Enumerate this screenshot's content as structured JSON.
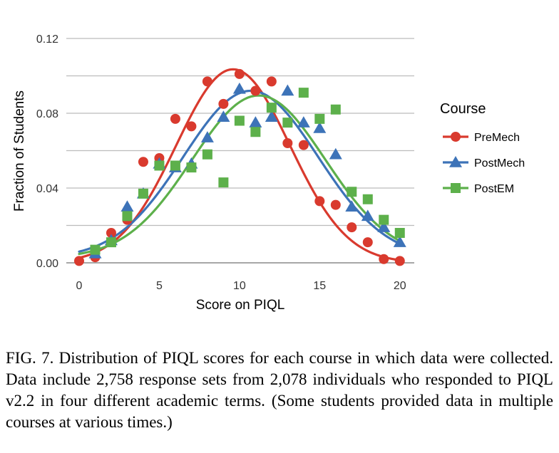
{
  "chart_data": {
    "type": "scatter",
    "xlabel": "Score on PIQL",
    "ylabel": "Fraction of Students",
    "xlim": [
      -0.8,
      20.9
    ],
    "ylim": [
      0,
      0.12
    ],
    "x_ticks": [
      0,
      5,
      10,
      15,
      20
    ],
    "x_tick_labels": [
      "0",
      "5",
      "10",
      "15",
      "20"
    ],
    "y_ticks": [
      0,
      0.02,
      0.04,
      0.06,
      0.08,
      0.1,
      0.12
    ],
    "y_tick_labels": [
      "0.00",
      "0.04",
      "0.08",
      "0.12"
    ],
    "y_tick_labels_at": [
      0,
      0.04,
      0.08,
      0.12
    ],
    "grid": true,
    "legend_title": "Course",
    "legend_position": "right",
    "series": [
      {
        "name": "PreMech",
        "color": "#d93a2e",
        "marker": "circle",
        "x": [
          0,
          1,
          2,
          3,
          4,
          5,
          6,
          7,
          8,
          9,
          10,
          11,
          12,
          13,
          14,
          15,
          16,
          17,
          18,
          19,
          20
        ],
        "y": [
          0.001,
          0.003,
          0.016,
          0.023,
          0.054,
          0.056,
          0.077,
          0.073,
          0.097,
          0.085,
          0.101,
          0.092,
          0.097,
          0.064,
          0.063,
          0.033,
          0.031,
          0.019,
          0.011,
          0.002,
          0.001
        ],
        "fit": {
          "amplitude": 0.1035,
          "mean": 9.6,
          "sigma": 3.55,
          "offset": 0.0
        }
      },
      {
        "name": "PostMech",
        "color": "#3d73b8",
        "marker": "triangle",
        "x": [
          1,
          2,
          3,
          4,
          5,
          6,
          7,
          8,
          9,
          10,
          11,
          12,
          13,
          14,
          15,
          16,
          17,
          18,
          19,
          20
        ],
        "y": [
          0.005,
          0.012,
          0.03,
          0.037,
          0.053,
          0.051,
          0.053,
          0.067,
          0.078,
          0.093,
          0.075,
          0.078,
          0.092,
          0.075,
          0.072,
          0.058,
          0.03,
          0.025,
          0.019,
          0.011
        ],
        "fit": {
          "amplitude": 0.0895,
          "mean": 10.7,
          "sigma": 4.2,
          "offset": 0.0025
        }
      },
      {
        "name": "PostEM",
        "color": "#5db04b",
        "marker": "square",
        "x": [
          1,
          2,
          3,
          4,
          5,
          6,
          7,
          8,
          9,
          10,
          11,
          12,
          13,
          14,
          15,
          16,
          17,
          18,
          19,
          20
        ],
        "y": [
          0.007,
          0.011,
          0.025,
          0.037,
          0.052,
          0.052,
          0.051,
          0.058,
          0.043,
          0.076,
          0.07,
          0.083,
          0.075,
          0.091,
          0.077,
          0.082,
          0.038,
          0.034,
          0.023,
          0.016
        ],
        "fit": {
          "amplitude": 0.087,
          "mean": 11.2,
          "sigma": 4.15,
          "offset": 0.0025
        }
      }
    ]
  },
  "caption": "FIG. 7.  Distribution of PIQL scores for each course in which data were collected. Data include 2,758 response sets from 2,078 individuals who responded to PIQL v2.2 in four different academic terms. (Some students provided data in multiple courses at various times.)"
}
